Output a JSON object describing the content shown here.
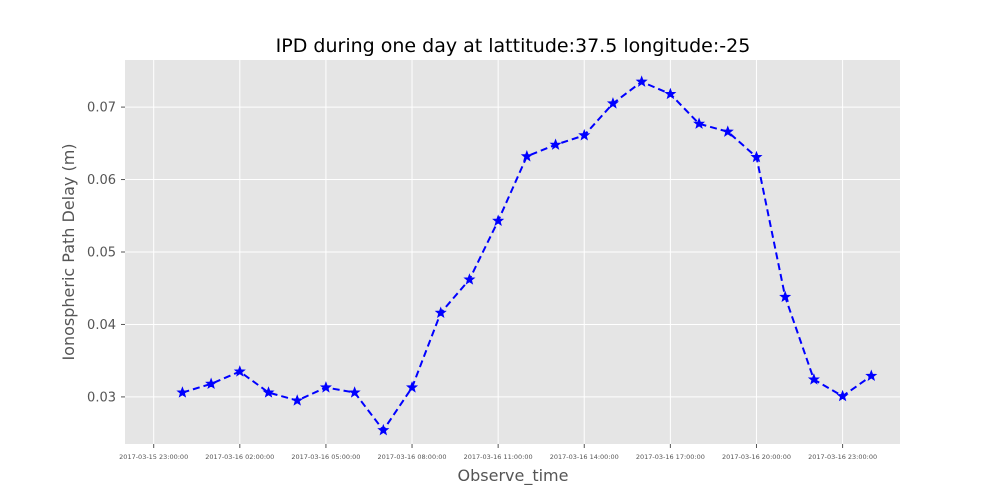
{
  "chart_data": {
    "type": "line",
    "title": "IPD during one day at lattitude:37.5 longitude:-25",
    "xlabel": "Observe_time",
    "ylabel": "Ionospheric Path Delay (m)",
    "x_tick_labels": [
      "2017-03-15 23:00:00",
      "2017-03-16 02:00:00",
      "2017-03-16 05:00:00",
      "2017-03-16 08:00:00",
      "2017-03-16 11:00:00",
      "2017-03-16 14:00:00",
      "2017-03-16 17:00:00",
      "2017-03-16 20:00:00",
      "2017-03-16 23:00:00"
    ],
    "y_ticks": [
      0.03,
      0.04,
      0.05,
      0.06,
      0.07
    ],
    "y_tick_labels": [
      "0.03",
      "0.04",
      "0.05",
      "0.06",
      "0.07"
    ],
    "xlim": [
      "2017-03-15 22:00:00",
      "2017-03-17 01:00:00"
    ],
    "ylim": [
      0.0235,
      0.0765
    ],
    "grid": true,
    "legend": false,
    "series": [
      {
        "color": "#0000ff",
        "line_style": "dashed",
        "marker": "star",
        "x": [
          "2017-03-16 00:00:00",
          "2017-03-16 01:00:00",
          "2017-03-16 02:00:00",
          "2017-03-16 03:00:00",
          "2017-03-16 04:00:00",
          "2017-03-16 05:00:00",
          "2017-03-16 06:00:00",
          "2017-03-16 07:00:00",
          "2017-03-16 08:00:00",
          "2017-03-16 09:00:00",
          "2017-03-16 10:00:00",
          "2017-03-16 11:00:00",
          "2017-03-16 12:00:00",
          "2017-03-16 13:00:00",
          "2017-03-16 14:00:00",
          "2017-03-16 15:00:00",
          "2017-03-16 16:00:00",
          "2017-03-16 17:00:00",
          "2017-03-16 18:00:00",
          "2017-03-16 19:00:00",
          "2017-03-16 20:00:00",
          "2017-03-16 21:00:00",
          "2017-03-16 22:00:00",
          "2017-03-16 23:00:00",
          "2017-03-17 00:00:00"
        ],
        "values": [
          0.0306,
          0.0318,
          0.0335,
          0.0306,
          0.0295,
          0.0313,
          0.0306,
          0.0254,
          0.0313,
          0.0416,
          0.0462,
          0.0543,
          0.0632,
          0.0648,
          0.0661,
          0.0705,
          0.0735,
          0.0718,
          0.0677,
          0.0666,
          0.0631,
          0.0438,
          0.0324,
          0.0301,
          0.0329
        ]
      }
    ]
  }
}
